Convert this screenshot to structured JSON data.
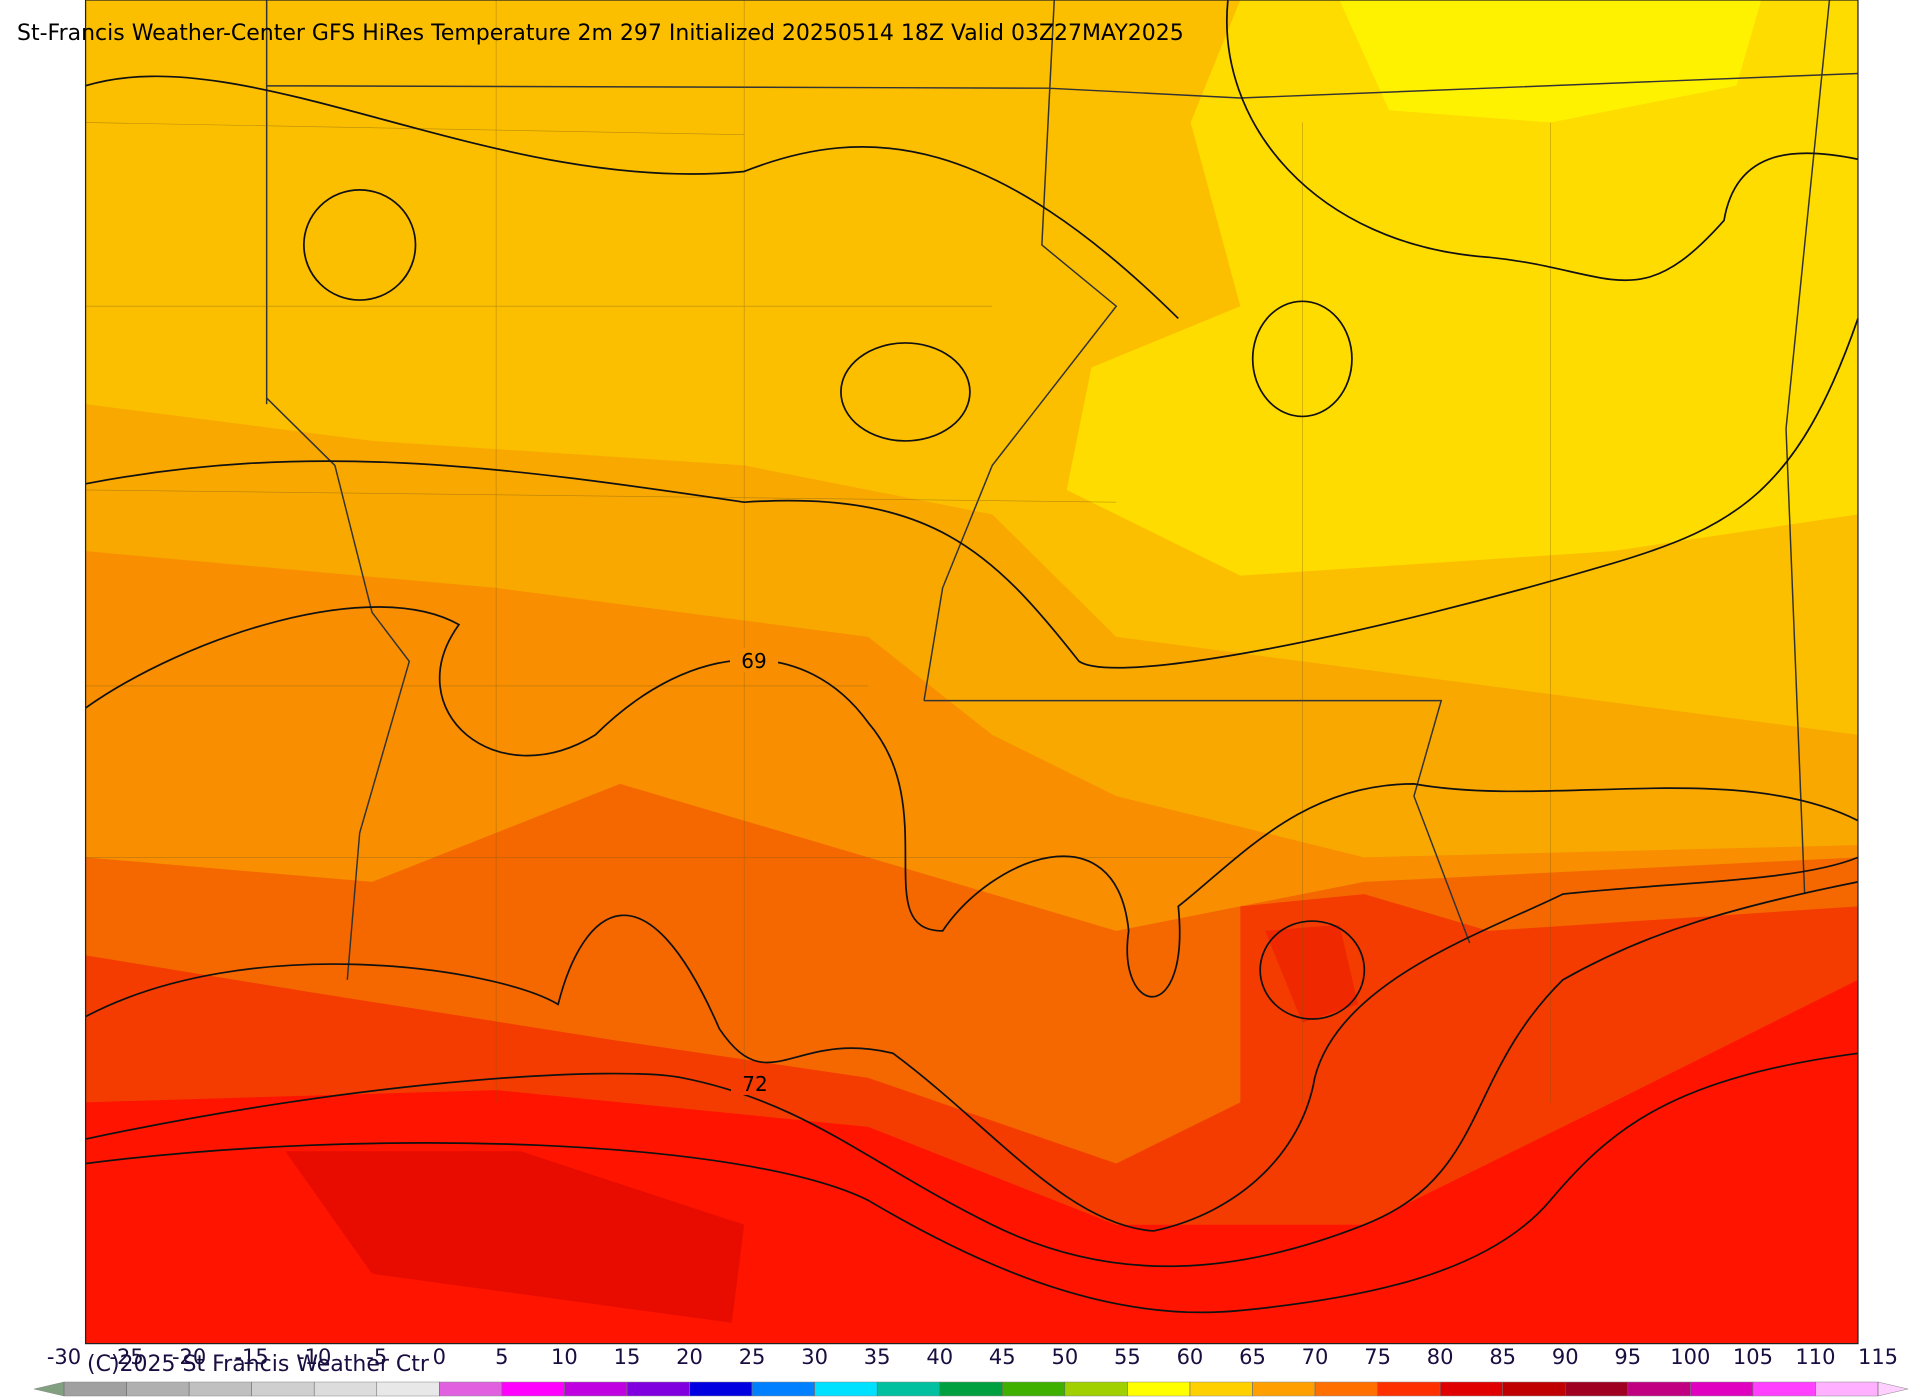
{
  "title": "St-Francis Weather-Center GFS HiRes Temperature 2m  297 Initialized 20250514 18Z Valid 03Z27MAY2025",
  "credit": "(C)2025 St Francis Weather Ctr",
  "contour_labels": [
    "69",
    "72"
  ],
  "colorbar": {
    "ticks": [
      -30,
      -25,
      -20,
      -15,
      -10,
      -5,
      0,
      5,
      10,
      15,
      20,
      25,
      30,
      35,
      40,
      45,
      50,
      55,
      60,
      65,
      70,
      75,
      80,
      85,
      90,
      95,
      100,
      105,
      110,
      115
    ],
    "colors": [
      "#a0a0a0",
      "#b0b0b0",
      "#c0c0c0",
      "#cfcfcf",
      "#dcdcdc",
      "#e8e8e8",
      "#e060e0",
      "#ff00ff",
      "#c000e0",
      "#8000e0",
      "#0000e0",
      "#0080ff",
      "#00e0ff",
      "#00c0a0",
      "#00a040",
      "#40b000",
      "#a0d000",
      "#ffff00",
      "#ffd000",
      "#ffa000",
      "#ff7000",
      "#ff3000",
      "#e00000",
      "#c00000",
      "#a00020",
      "#c00080",
      "#e000c0",
      "#ff40ff",
      "#ffb0ff"
    ],
    "under_color": "#80a080",
    "over_color": "#ffd0ff"
  }
}
